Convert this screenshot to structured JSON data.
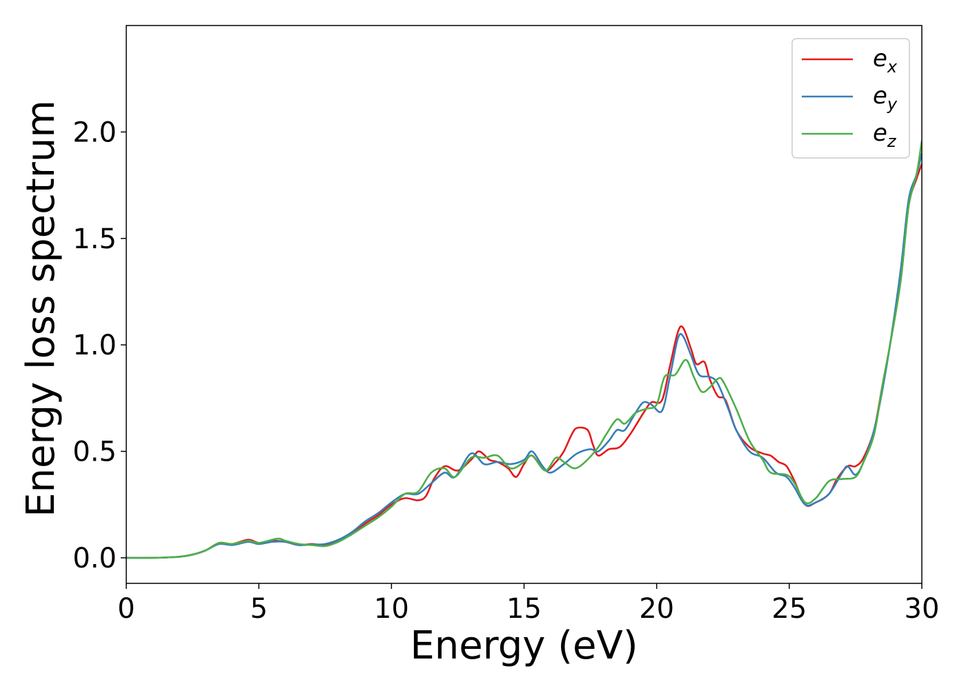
{
  "chart_data": {
    "type": "line",
    "title": "",
    "xlabel": "Energy (eV)",
    "ylabel": "Energy loss spectrum",
    "xlim": [
      0,
      30
    ],
    "ylim": [
      -0.12,
      2.5
    ],
    "xticks": [
      0,
      5,
      10,
      15,
      20,
      25,
      30
    ],
    "xtick_labels": [
      "0",
      "5",
      "10",
      "15",
      "20",
      "25",
      "30"
    ],
    "yticks": [
      0.0,
      0.5,
      1.0,
      1.5,
      2.0
    ],
    "ytick_labels": [
      "0.0",
      "0.5",
      "1.0",
      "1.5",
      "2.0"
    ],
    "grid": false,
    "legend_position": "top-right",
    "series": [
      {
        "name": "e_x",
        "base": "e",
        "sub": "x",
        "color": "#e41a1c",
        "points": [
          [
            0,
            0
          ],
          [
            1,
            0
          ],
          [
            2,
            0.005
          ],
          [
            2.5,
            0.015
          ],
          [
            3,
            0.035
          ],
          [
            3.5,
            0.07
          ],
          [
            4,
            0.065
          ],
          [
            4.6,
            0.085
          ],
          [
            5,
            0.07
          ],
          [
            5.5,
            0.08
          ],
          [
            6,
            0.075
          ],
          [
            6.5,
            0.06
          ],
          [
            7,
            0.065
          ],
          [
            7.5,
            0.06
          ],
          [
            8,
            0.08
          ],
          [
            8.5,
            0.11
          ],
          [
            9,
            0.16
          ],
          [
            9.5,
            0.2
          ],
          [
            10,
            0.25
          ],
          [
            10.5,
            0.28
          ],
          [
            11,
            0.27
          ],
          [
            11.3,
            0.29
          ],
          [
            11.6,
            0.37
          ],
          [
            12,
            0.43
          ],
          [
            12.5,
            0.41
          ],
          [
            13,
            0.46
          ],
          [
            13.3,
            0.5
          ],
          [
            13.7,
            0.46
          ],
          [
            14,
            0.45
          ],
          [
            14.4,
            0.42
          ],
          [
            14.7,
            0.38
          ],
          [
            15,
            0.44
          ],
          [
            15.3,
            0.48
          ],
          [
            15.8,
            0.41
          ],
          [
            16.2,
            0.45
          ],
          [
            16.5,
            0.5
          ],
          [
            16.8,
            0.58
          ],
          [
            17,
            0.61
          ],
          [
            17.4,
            0.6
          ],
          [
            17.6,
            0.53
          ],
          [
            17.8,
            0.48
          ],
          [
            18.2,
            0.51
          ],
          [
            18.6,
            0.52
          ],
          [
            19,
            0.58
          ],
          [
            19.5,
            0.68
          ],
          [
            19.8,
            0.73
          ],
          [
            20.2,
            0.74
          ],
          [
            20.5,
            0.9
          ],
          [
            20.8,
            1.06
          ],
          [
            21,
            1.08
          ],
          [
            21.3,
            0.98
          ],
          [
            21.5,
            0.91
          ],
          [
            21.8,
            0.92
          ],
          [
            22,
            0.84
          ],
          [
            22.3,
            0.76
          ],
          [
            22.6,
            0.74
          ],
          [
            23,
            0.6
          ],
          [
            23.5,
            0.52
          ],
          [
            24,
            0.49
          ],
          [
            24.3,
            0.48
          ],
          [
            24.6,
            0.45
          ],
          [
            24.9,
            0.43
          ],
          [
            25.2,
            0.36
          ],
          [
            25.6,
            0.25
          ],
          [
            26,
            0.26
          ],
          [
            26.5,
            0.3
          ],
          [
            26.8,
            0.37
          ],
          [
            27.2,
            0.43
          ],
          [
            27.5,
            0.43
          ],
          [
            27.8,
            0.47
          ],
          [
            28.2,
            0.6
          ],
          [
            28.5,
            0.8
          ],
          [
            28.8,
            1.0
          ],
          [
            29.2,
            1.3
          ],
          [
            29.5,
            1.65
          ],
          [
            29.8,
            1.78
          ],
          [
            30,
            1.85
          ]
        ]
      },
      {
        "name": "e_y",
        "base": "e",
        "sub": "y",
        "color": "#377eb8",
        "points": [
          [
            0,
            0
          ],
          [
            1,
            0
          ],
          [
            2,
            0.005
          ],
          [
            2.5,
            0.015
          ],
          [
            3,
            0.035
          ],
          [
            3.5,
            0.065
          ],
          [
            4,
            0.06
          ],
          [
            4.6,
            0.075
          ],
          [
            5,
            0.065
          ],
          [
            5.5,
            0.075
          ],
          [
            6,
            0.075
          ],
          [
            6.5,
            0.06
          ],
          [
            7,
            0.062
          ],
          [
            7.5,
            0.065
          ],
          [
            8,
            0.085
          ],
          [
            8.5,
            0.12
          ],
          [
            9,
            0.17
          ],
          [
            9.5,
            0.21
          ],
          [
            10,
            0.26
          ],
          [
            10.5,
            0.3
          ],
          [
            11,
            0.3
          ],
          [
            11.5,
            0.35
          ],
          [
            12,
            0.4
          ],
          [
            12.4,
            0.38
          ],
          [
            13,
            0.49
          ],
          [
            13.5,
            0.44
          ],
          [
            14,
            0.45
          ],
          [
            14.5,
            0.44
          ],
          [
            15,
            0.46
          ],
          [
            15.3,
            0.5
          ],
          [
            15.7,
            0.43
          ],
          [
            16,
            0.4
          ],
          [
            16.5,
            0.44
          ],
          [
            17,
            0.49
          ],
          [
            17.5,
            0.51
          ],
          [
            17.8,
            0.5
          ],
          [
            18.2,
            0.55
          ],
          [
            18.5,
            0.6
          ],
          [
            18.8,
            0.6
          ],
          [
            19.2,
            0.68
          ],
          [
            19.5,
            0.73
          ],
          [
            19.8,
            0.72
          ],
          [
            20.2,
            0.69
          ],
          [
            20.5,
            0.85
          ],
          [
            20.8,
            1.03
          ],
          [
            21,
            1.04
          ],
          [
            21.3,
            0.95
          ],
          [
            21.6,
            0.86
          ],
          [
            22,
            0.85
          ],
          [
            22.3,
            0.82
          ],
          [
            22.7,
            0.7
          ],
          [
            23,
            0.6
          ],
          [
            23.5,
            0.5
          ],
          [
            24,
            0.47
          ],
          [
            24.5,
            0.4
          ],
          [
            24.9,
            0.38
          ],
          [
            25.2,
            0.33
          ],
          [
            25.6,
            0.25
          ],
          [
            26,
            0.26
          ],
          [
            26.5,
            0.3
          ],
          [
            27,
            0.4
          ],
          [
            27.2,
            0.43
          ],
          [
            27.5,
            0.39
          ],
          [
            27.8,
            0.45
          ],
          [
            28.2,
            0.6
          ],
          [
            28.5,
            0.78
          ],
          [
            28.8,
            1.0
          ],
          [
            29.2,
            1.35
          ],
          [
            29.5,
            1.68
          ],
          [
            29.8,
            1.8
          ],
          [
            30,
            1.9
          ]
        ]
      },
      {
        "name": "e_z",
        "base": "e",
        "sub": "z",
        "color": "#4daf4a",
        "points": [
          [
            0,
            0
          ],
          [
            1,
            0
          ],
          [
            2,
            0.005
          ],
          [
            2.5,
            0.015
          ],
          [
            3,
            0.035
          ],
          [
            3.5,
            0.07
          ],
          [
            4,
            0.065
          ],
          [
            4.6,
            0.08
          ],
          [
            5,
            0.07
          ],
          [
            5.7,
            0.09
          ],
          [
            6,
            0.08
          ],
          [
            6.5,
            0.065
          ],
          [
            7,
            0.06
          ],
          [
            7.5,
            0.055
          ],
          [
            8,
            0.075
          ],
          [
            8.5,
            0.11
          ],
          [
            9,
            0.15
          ],
          [
            9.5,
            0.19
          ],
          [
            10,
            0.24
          ],
          [
            10.5,
            0.3
          ],
          [
            11,
            0.31
          ],
          [
            11.5,
            0.4
          ],
          [
            12,
            0.42
          ],
          [
            12.4,
            0.38
          ],
          [
            13,
            0.47
          ],
          [
            13.5,
            0.47
          ],
          [
            14,
            0.48
          ],
          [
            14.5,
            0.42
          ],
          [
            15,
            0.45
          ],
          [
            15.3,
            0.48
          ],
          [
            15.8,
            0.41
          ],
          [
            16.2,
            0.47
          ],
          [
            16.5,
            0.45
          ],
          [
            16.9,
            0.42
          ],
          [
            17.3,
            0.45
          ],
          [
            17.8,
            0.52
          ],
          [
            18.1,
            0.58
          ],
          [
            18.5,
            0.65
          ],
          [
            18.8,
            0.63
          ],
          [
            19.2,
            0.68
          ],
          [
            19.6,
            0.7
          ],
          [
            20,
            0.72
          ],
          [
            20.3,
            0.85
          ],
          [
            20.7,
            0.86
          ],
          [
            21.1,
            0.93
          ],
          [
            21.4,
            0.85
          ],
          [
            21.7,
            0.78
          ],
          [
            22,
            0.8
          ],
          [
            22.3,
            0.84
          ],
          [
            22.5,
            0.83
          ],
          [
            23,
            0.7
          ],
          [
            23.5,
            0.55
          ],
          [
            24,
            0.46
          ],
          [
            24.3,
            0.4
          ],
          [
            24.9,
            0.39
          ],
          [
            25.2,
            0.35
          ],
          [
            25.6,
            0.26
          ],
          [
            26,
            0.28
          ],
          [
            26.5,
            0.36
          ],
          [
            27,
            0.37
          ],
          [
            27.5,
            0.38
          ],
          [
            27.8,
            0.45
          ],
          [
            28.2,
            0.58
          ],
          [
            28.5,
            0.8
          ],
          [
            28.8,
            1.0
          ],
          [
            29.2,
            1.3
          ],
          [
            29.5,
            1.65
          ],
          [
            29.8,
            1.8
          ],
          [
            30,
            1.96
          ]
        ]
      }
    ]
  }
}
